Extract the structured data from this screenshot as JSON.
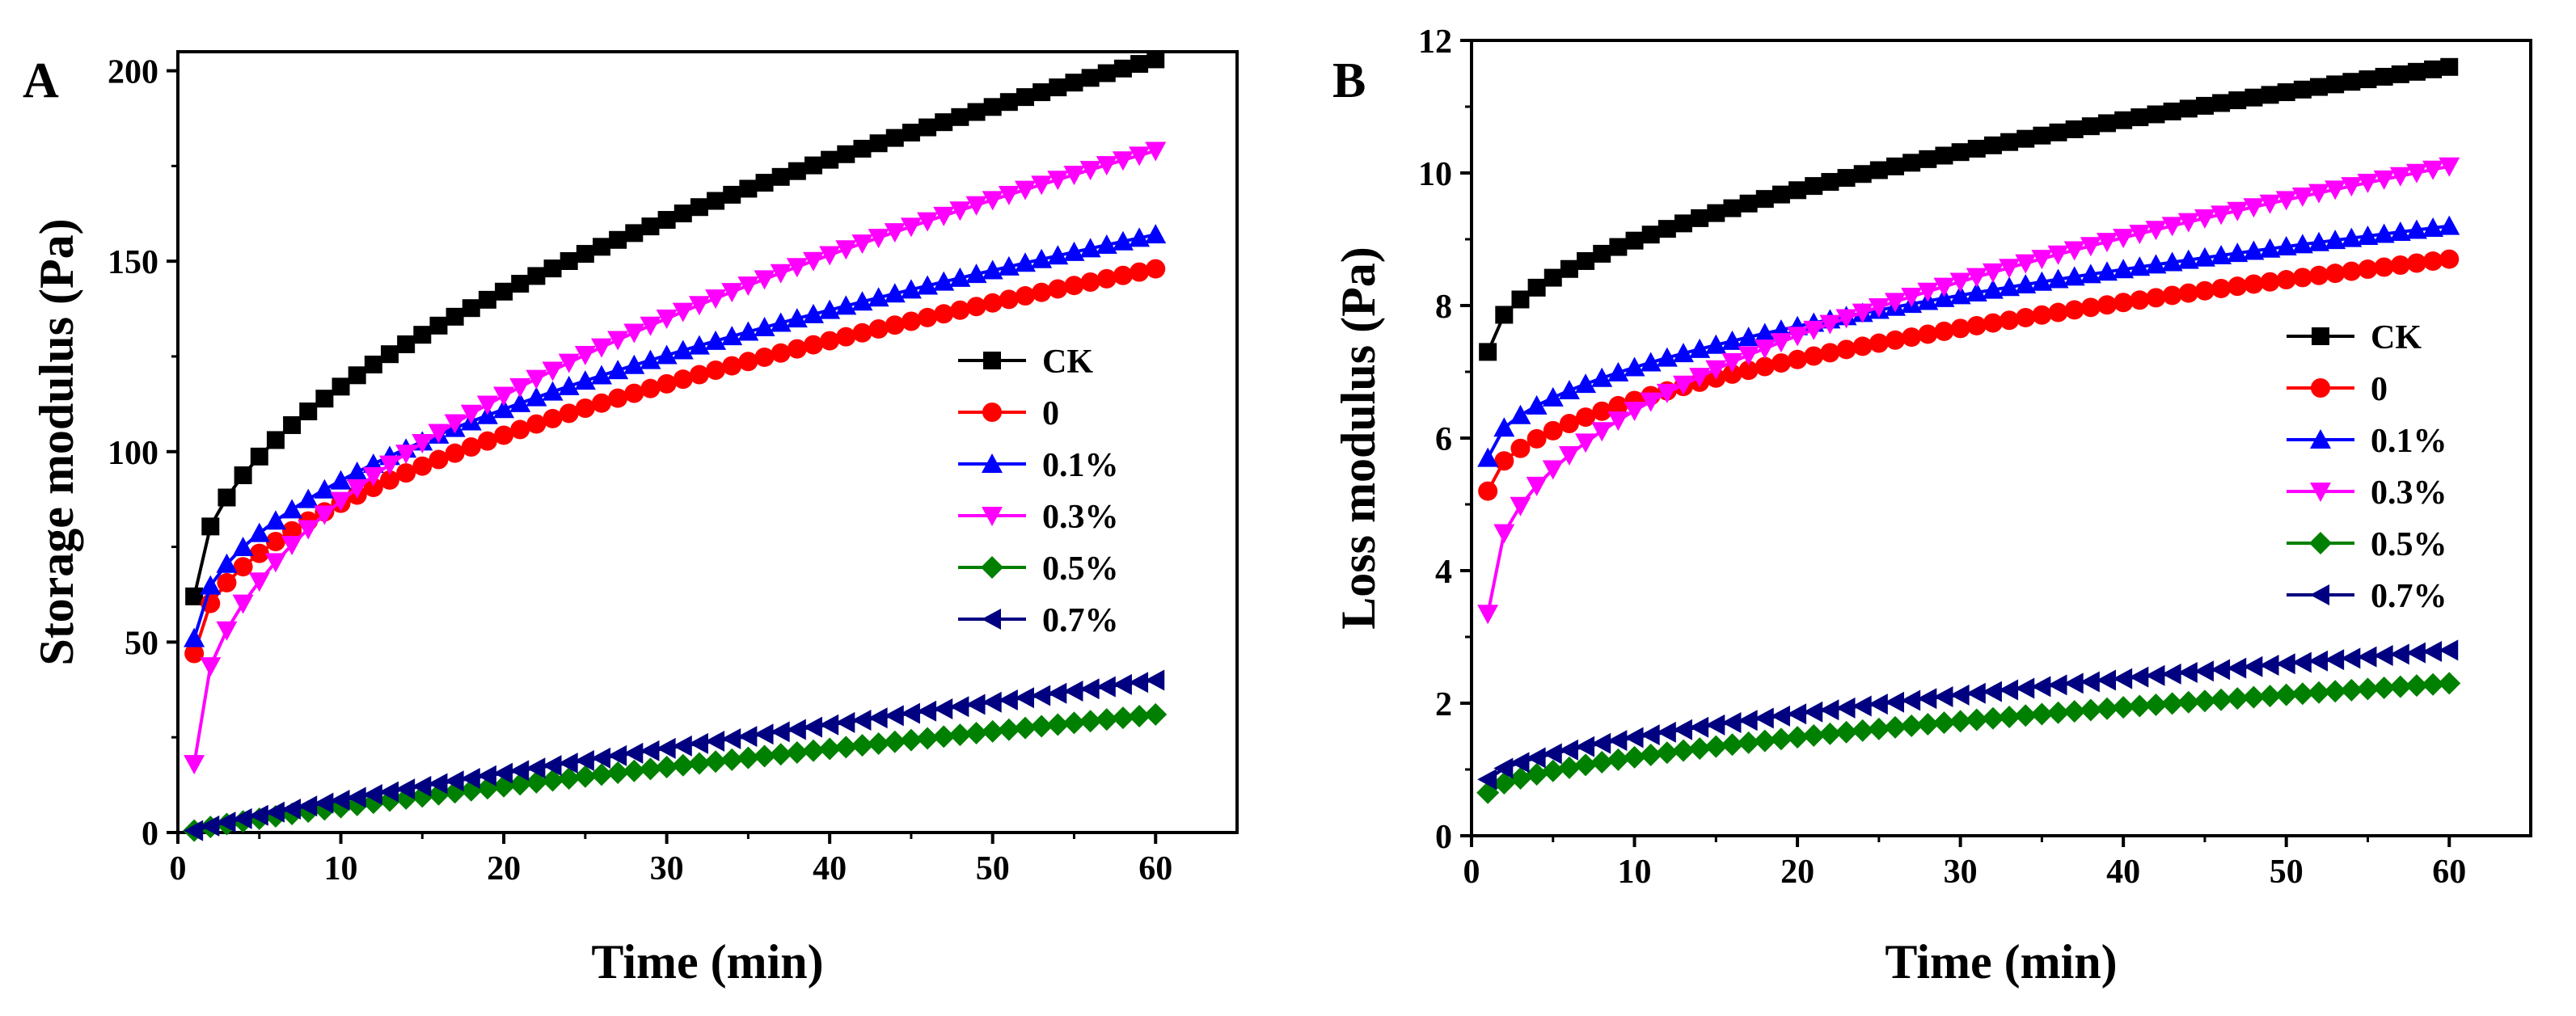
{
  "chart_data": [
    {
      "type": "line",
      "panel": "A",
      "xlabel": "Time (min)",
      "ylabel": "Storage modulus (Pa)",
      "xlim": [
        0,
        65
      ],
      "ylim": [
        0,
        205
      ],
      "xticks": [
        0,
        10,
        20,
        30,
        40,
        50,
        60
      ],
      "yticks": [
        0,
        50,
        100,
        150,
        200
      ],
      "legend_position": "center-right",
      "x": [
        1,
        60
      ],
      "series": [
        {
          "name": "CK",
          "color": "#000000",
          "marker": "square",
          "start": 62,
          "end": 203,
          "exponent": 0.5
        },
        {
          "name": "0",
          "color": "#ff0000",
          "marker": "circle",
          "start": 47,
          "end": 148,
          "exponent": 0.5
        },
        {
          "name": "0.1%",
          "color": "#0000ff",
          "marker": "triangle-up",
          "start": 51,
          "end": 157,
          "exponent": 0.5
        },
        {
          "name": "0.3%",
          "color": "#ff00ff",
          "marker": "triangle-down",
          "start": 18,
          "end": 179,
          "exponent": 0.45
        },
        {
          "name": "0.5%",
          "color": "#008000",
          "marker": "diamond",
          "start": 0.5,
          "end": 31,
          "exponent": 0.85
        },
        {
          "name": "0.7%",
          "color": "#000080",
          "marker": "triangle-left",
          "start": 0.5,
          "end": 40,
          "exponent": 0.85
        }
      ]
    },
    {
      "type": "line",
      "panel": "B",
      "xlabel": "Time (min)",
      "ylabel": "Loss modulus (Pa)",
      "xlim": [
        0,
        65
      ],
      "ylim": [
        0,
        12
      ],
      "xticks": [
        0,
        10,
        20,
        30,
        40,
        50,
        60
      ],
      "yticks": [
        0,
        2,
        4,
        6,
        8,
        10,
        12
      ],
      "legend_position": "center-right",
      "x": [
        1,
        60
      ],
      "series": [
        {
          "name": "CK",
          "color": "#000000",
          "marker": "square",
          "start": 7.3,
          "end": 11.6,
          "exponent": 0.5
        },
        {
          "name": "0",
          "color": "#ff0000",
          "marker": "circle",
          "start": 5.2,
          "end": 8.7,
          "exponent": 0.5
        },
        {
          "name": "0.1%",
          "color": "#0000ff",
          "marker": "triangle-up",
          "start": 5.7,
          "end": 9.2,
          "exponent": 0.5
        },
        {
          "name": "0.3%",
          "color": "#ff00ff",
          "marker": "triangle-down",
          "start": 3.35,
          "end": 10.1,
          "exponent": 0.42
        },
        {
          "name": "0.5%",
          "color": "#008000",
          "marker": "diamond",
          "start": 0.65,
          "end": 2.3,
          "exponent": 0.6
        },
        {
          "name": "0.7%",
          "color": "#000080",
          "marker": "triangle-left",
          "start": 0.85,
          "end": 2.8,
          "exponent": 0.6
        }
      ]
    }
  ]
}
